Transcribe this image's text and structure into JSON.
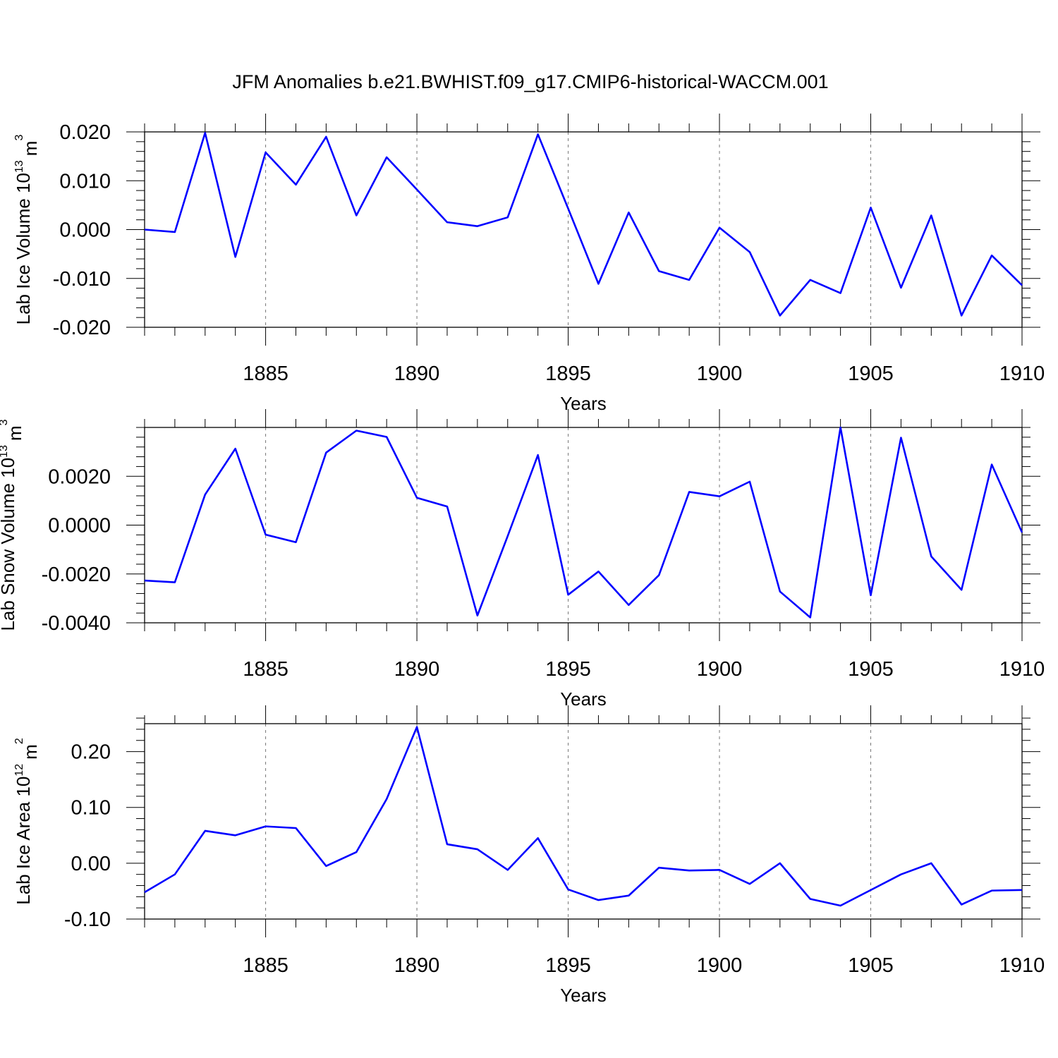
{
  "title": "JFM Anomalies b.e21.BWHIST.f09_g17.CMIP6-historical-WACCM.001",
  "line_color": "#0000ff",
  "chart_data": [
    {
      "type": "line",
      "ylabel": "Lab Ice Volume 10",
      "ylabel_exp": "13",
      "ylabel_unit": "m",
      "ylabel_unit_exp": "3",
      "xlabel": "Years",
      "xlim": [
        1881,
        1910
      ],
      "ylim": [
        -0.02,
        0.02
      ],
      "xticks": [
        1885,
        1890,
        1895,
        1900,
        1905,
        1910
      ],
      "yticks": [
        -0.02,
        -0.01,
        0.0,
        0.01,
        0.02
      ],
      "ytick_labels": [
        "-0.020",
        "-0.010",
        "0.000",
        "0.010",
        "0.020"
      ],
      "x": [
        1881,
        1882,
        1883,
        1884,
        1885,
        1886,
        1887,
        1888,
        1889,
        1890,
        1891,
        1892,
        1893,
        1894,
        1895,
        1896,
        1897,
        1898,
        1899,
        1900,
        1901,
        1902,
        1903,
        1904,
        1905,
        1906,
        1907,
        1908,
        1909,
        1910
      ],
      "series": [
        {
          "name": "Lab Ice Volume",
          "values": [
            0.0,
            -0.0005,
            0.0198,
            -0.0056,
            0.0158,
            0.0092,
            0.019,
            0.0029,
            0.0148,
            0.0082,
            0.0015,
            0.0007,
            0.0025,
            0.0195,
            0.0043,
            -0.0111,
            0.0035,
            -0.0085,
            -0.0103,
            0.0004,
            -0.0046,
            -0.0176,
            -0.0103,
            -0.013,
            0.0045,
            -0.0119,
            0.0029,
            -0.0176,
            -0.0053,
            -0.0114
          ]
        }
      ]
    },
    {
      "type": "line",
      "ylabel": "Lab Snow Volume 10",
      "ylabel_exp": "13",
      "ylabel_unit": "m",
      "ylabel_unit_exp": "3",
      "xlabel": "Years",
      "xlim": [
        1881,
        1910
      ],
      "ylim": [
        -0.004,
        0.004
      ],
      "xticks": [
        1885,
        1890,
        1895,
        1900,
        1905,
        1910
      ],
      "yticks": [
        -0.004,
        -0.002,
        0.0,
        0.002
      ],
      "ytick_labels": [
        "-0.0040",
        "-0.0020",
        "0.0000",
        "0.0020"
      ],
      "x": [
        1881,
        1882,
        1883,
        1884,
        1885,
        1886,
        1887,
        1888,
        1889,
        1890,
        1891,
        1892,
        1893,
        1894,
        1895,
        1896,
        1897,
        1898,
        1899,
        1900,
        1901,
        1902,
        1903,
        1904,
        1905,
        1906,
        1907,
        1908,
        1909,
        1910
      ],
      "series": [
        {
          "name": "Lab Snow Volume",
          "values": [
            -0.00227,
            -0.00234,
            0.00125,
            0.00313,
            -0.00039,
            -0.0007,
            0.00297,
            0.00387,
            0.00361,
            0.00112,
            0.00076,
            -0.0037,
            -0.00045,
            0.00287,
            -0.00285,
            -0.0019,
            -0.00327,
            -0.00205,
            0.00136,
            0.00118,
            0.00178,
            -0.00272,
            -0.00378,
            0.004,
            -0.00287,
            0.00358,
            -0.00128,
            -0.00265,
            0.00248,
            -0.0003
          ]
        }
      ]
    },
    {
      "type": "line",
      "ylabel": "Lab Ice Area 10",
      "ylabel_exp": "12",
      "ylabel_unit": "m",
      "ylabel_unit_exp": "2",
      "xlabel": "Years",
      "xlim": [
        1881,
        1910
      ],
      "ylim": [
        -0.1,
        0.25
      ],
      "xticks": [
        1885,
        1890,
        1895,
        1900,
        1905,
        1910
      ],
      "yticks": [
        -0.1,
        0.0,
        0.1,
        0.2
      ],
      "ytick_labels": [
        "-0.10",
        "0.00",
        "0.10",
        "0.20"
      ],
      "x": [
        1881,
        1882,
        1883,
        1884,
        1885,
        1886,
        1887,
        1888,
        1889,
        1890,
        1891,
        1892,
        1893,
        1894,
        1895,
        1896,
        1897,
        1898,
        1899,
        1900,
        1901,
        1902,
        1903,
        1904,
        1905,
        1906,
        1907,
        1908,
        1909,
        1910
      ],
      "series": [
        {
          "name": "Lab Ice Area",
          "values": [
            -0.052,
            -0.02,
            0.058,
            0.05,
            0.066,
            0.063,
            -0.005,
            0.02,
            0.115,
            0.244,
            0.034,
            0.025,
            -0.012,
            0.045,
            -0.047,
            -0.066,
            -0.058,
            -0.008,
            -0.013,
            -0.012,
            -0.037,
            0.0,
            -0.064,
            -0.076,
            -0.048,
            -0.02,
            0.0,
            -0.074,
            -0.049,
            -0.048
          ]
        }
      ]
    }
  ]
}
